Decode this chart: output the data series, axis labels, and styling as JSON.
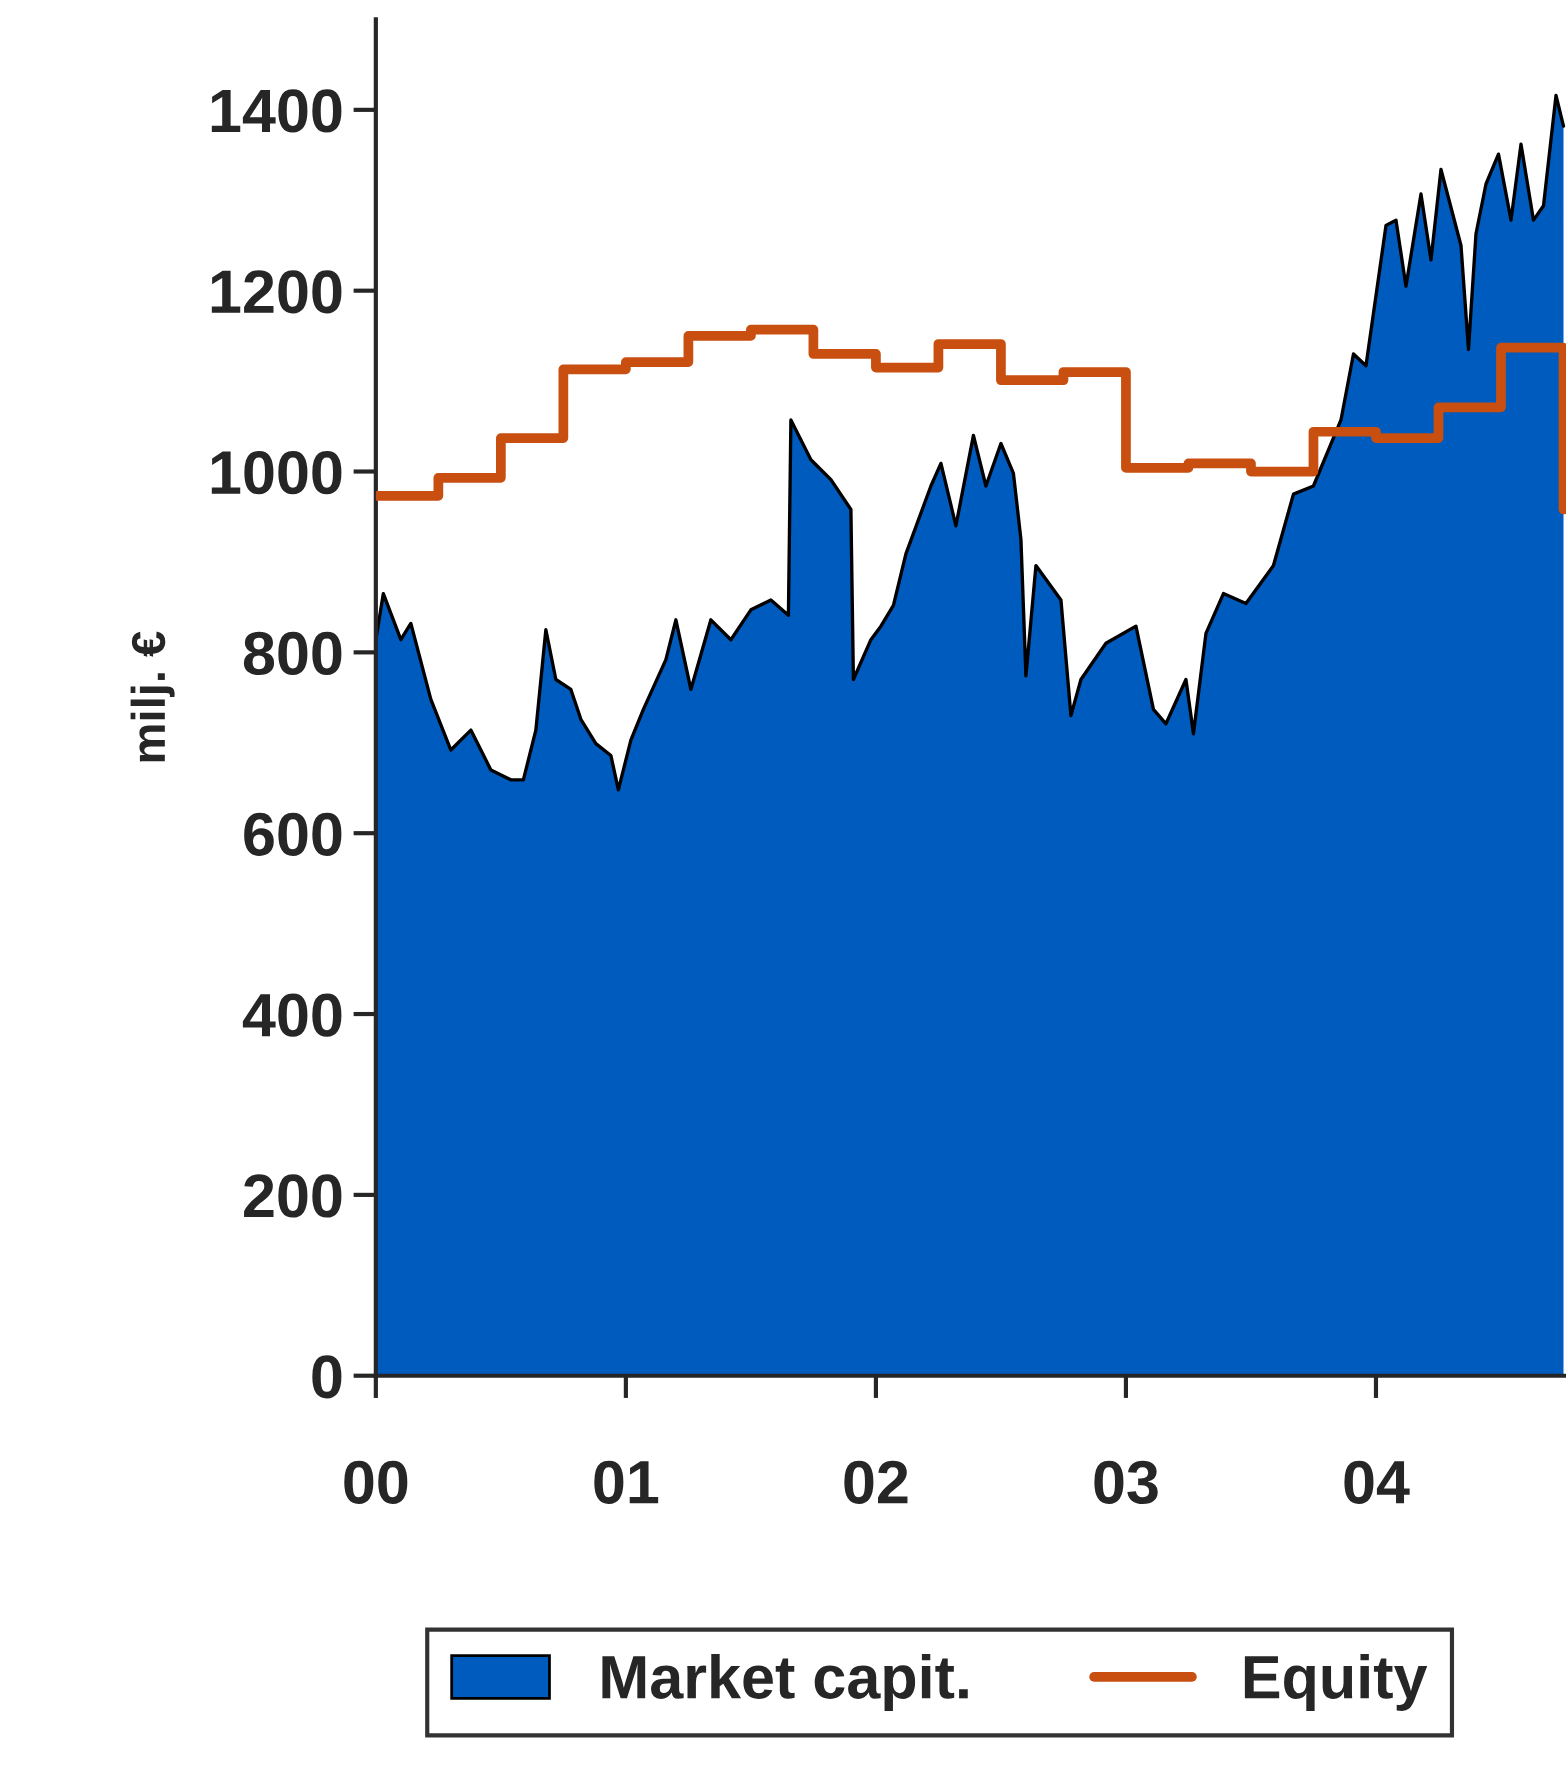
{
  "chart_data": {
    "type": "area",
    "ylabel": "milj. €",
    "xlim": [
      0,
      4.76
    ],
    "ylim": [
      0,
      1500
    ],
    "xticks": [
      {
        "value": 0,
        "label": "00"
      },
      {
        "value": 1,
        "label": "01"
      },
      {
        "value": 2,
        "label": "02"
      },
      {
        "value": 3,
        "label": "03"
      },
      {
        "value": 4,
        "label": "04"
      }
    ],
    "yticks": [
      0,
      200,
      400,
      600,
      800,
      1000,
      1200,
      1400
    ],
    "grid": false,
    "legend": "bottom",
    "series": [
      {
        "name": "Market capit.",
        "color": "#005bbf",
        "x": [
          0,
          0.03,
          0.1,
          0.14,
          0.22,
          0.3,
          0.38,
          0.46,
          0.54,
          0.59,
          0.64,
          0.68,
          0.72,
          0.78,
          0.82,
          0.88,
          0.94,
          0.97,
          1.02,
          1.07,
          1.16,
          1.2,
          1.26,
          1.34,
          1.42,
          1.5,
          1.58,
          1.65,
          1.66,
          1.74,
          1.82,
          1.9,
          1.91,
          1.98,
          2.02,
          2.07,
          2.12,
          2.22,
          2.26,
          2.32,
          2.39,
          2.44,
          2.5,
          2.55,
          2.58,
          2.6,
          2.64,
          2.74,
          2.78,
          2.82,
          2.92,
          3.04,
          3.11,
          3.16,
          3.24,
          3.27,
          3.32,
          3.39,
          3.48,
          3.59,
          3.67,
          3.75,
          3.86,
          3.91,
          3.96,
          3.99,
          4.04,
          4.08,
          4.12,
          4.18,
          4.22,
          4.26,
          4.34,
          4.37,
          4.4,
          4.44,
          4.49,
          4.54,
          4.58,
          4.63,
          4.67,
          4.72,
          4.75
        ],
        "values": [
          814,
          865,
          814,
          832,
          748,
          692,
          714,
          670,
          659,
          659,
          714,
          825,
          770,
          759,
          726,
          699,
          686,
          648,
          703,
          737,
          792,
          836,
          759,
          836,
          814,
          847,
          858,
          841,
          1057,
          1013,
          991,
          958,
          770,
          814,
          829,
          852,
          909,
          984,
          1009,
          940,
          1040,
          984,
          1031,
          998,
          925,
          774,
          896,
          858,
          730,
          770,
          810,
          829,
          737,
          721,
          770,
          710,
          821,
          865,
          854,
          896,
          975,
          984,
          1057,
          1130,
          1117,
          1175,
          1272,
          1278,
          1205,
          1307,
          1234,
          1334,
          1250,
          1135,
          1263,
          1318,
          1351,
          1278,
          1362,
          1278,
          1294,
          1416,
          1382
        ]
      },
      {
        "name": "Equity",
        "type": "step",
        "color": "#c84f0f",
        "x": [
          0,
          0.25,
          0.5,
          0.75,
          1.0,
          1.25,
          1.5,
          1.75,
          2.0,
          2.25,
          2.5,
          2.75,
          3.0,
          3.25,
          3.5,
          3.75,
          4.0,
          4.25,
          4.5,
          4.75
        ],
        "values": [
          973,
          993,
          1037,
          1113,
          1121,
          1150,
          1157,
          1130,
          1115,
          1141,
          1101,
          1110,
          1004,
          1009,
          1000,
          1044,
          1037,
          1071,
          1137,
          958
        ]
      }
    ]
  }
}
